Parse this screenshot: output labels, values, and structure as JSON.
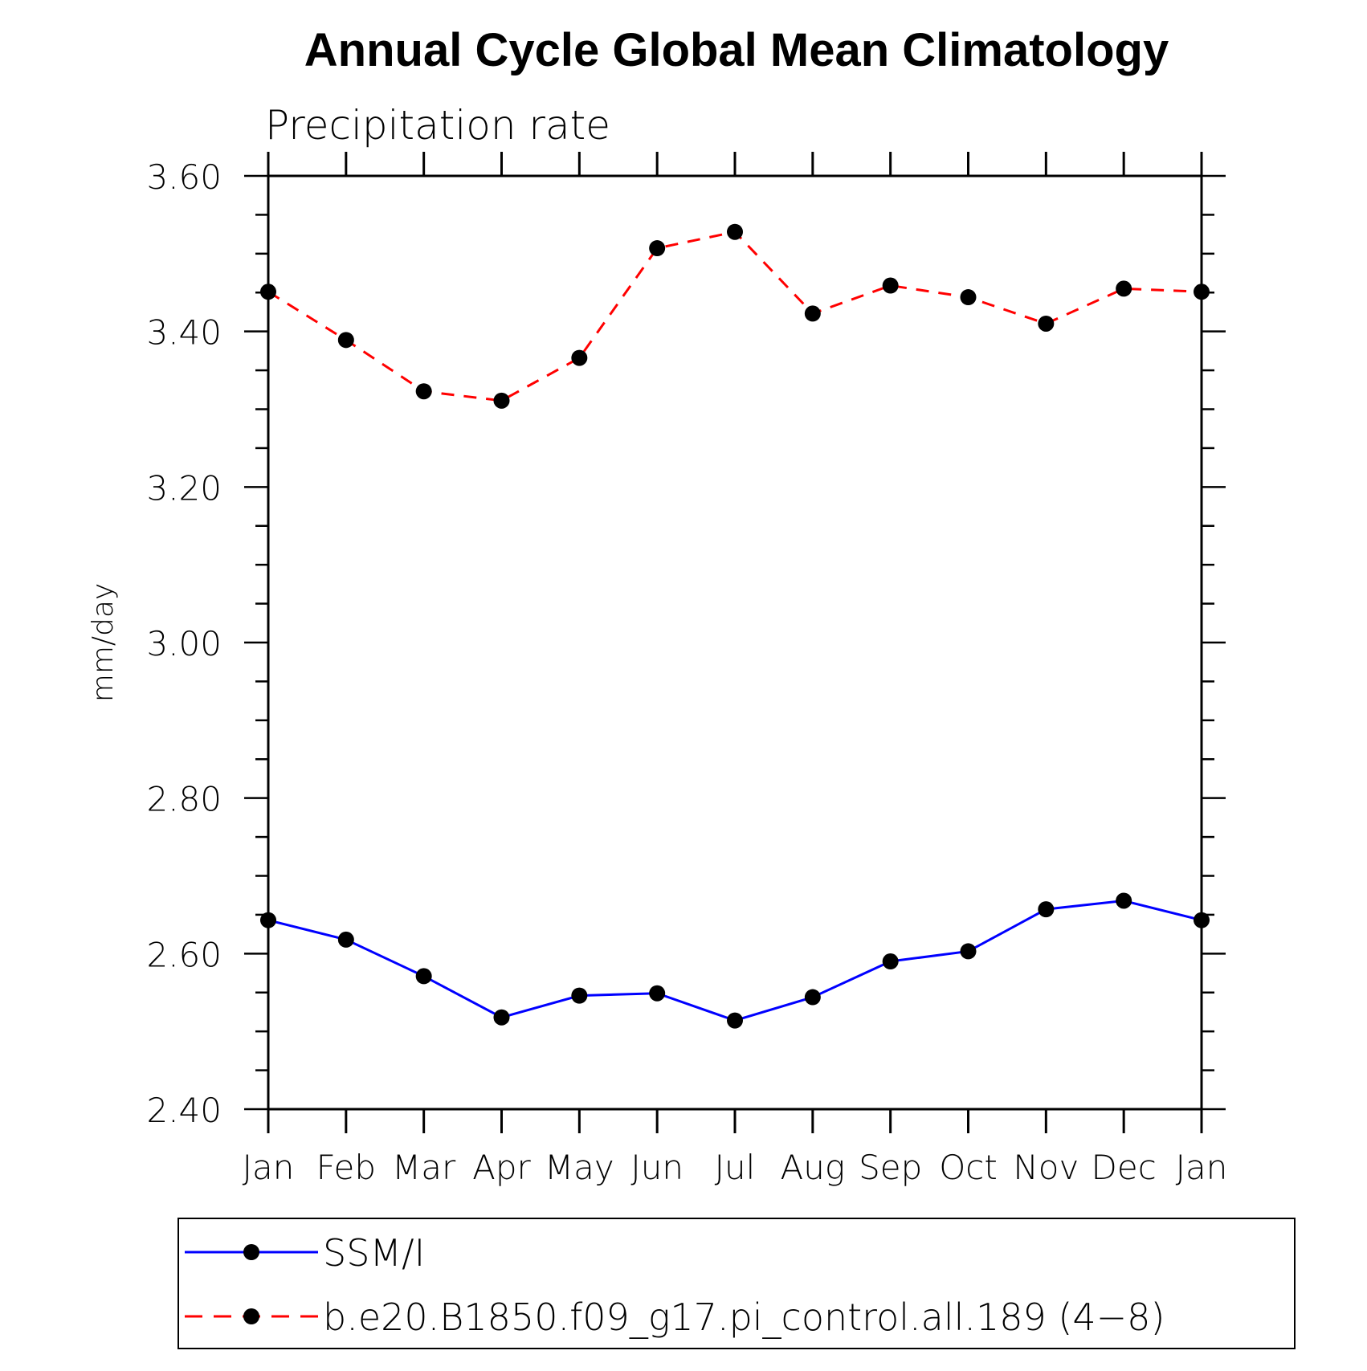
{
  "chart_data": {
    "type": "line",
    "title": "Annual Cycle Global Mean Climatology",
    "subtitle": "Precipitation rate",
    "ylabel": "mm/day",
    "xlabel": "",
    "categories": [
      "Jan",
      "Feb",
      "Mar",
      "Apr",
      "May",
      "Jun",
      "Jul",
      "Aug",
      "Sep",
      "Oct",
      "Nov",
      "Dec",
      "Jan"
    ],
    "ylim": [
      2.4,
      3.6
    ],
    "yticks": [
      "2.40",
      "2.60",
      "2.80",
      "3.00",
      "3.20",
      "3.40",
      "3.60"
    ],
    "grid": false,
    "legend_position": "bottom",
    "series": [
      {
        "name": "SSM/I",
        "color": "#0000ff",
        "line_style": "solid",
        "marker": "filled-circle",
        "values": [
          2.643,
          2.618,
          2.571,
          2.518,
          2.546,
          2.549,
          2.514,
          2.544,
          2.59,
          2.603,
          2.657,
          2.668,
          2.643
        ]
      },
      {
        "name": "b.e20.B1850.f09_g17.pi_control.all.189 (4−8)",
        "color": "#ff0000",
        "line_style": "dashed",
        "marker": "filled-circle",
        "values": [
          3.451,
          3.389,
          3.323,
          3.311,
          3.366,
          3.507,
          3.528,
          3.423,
          3.459,
          3.444,
          3.41,
          3.455,
          3.451
        ]
      }
    ]
  }
}
